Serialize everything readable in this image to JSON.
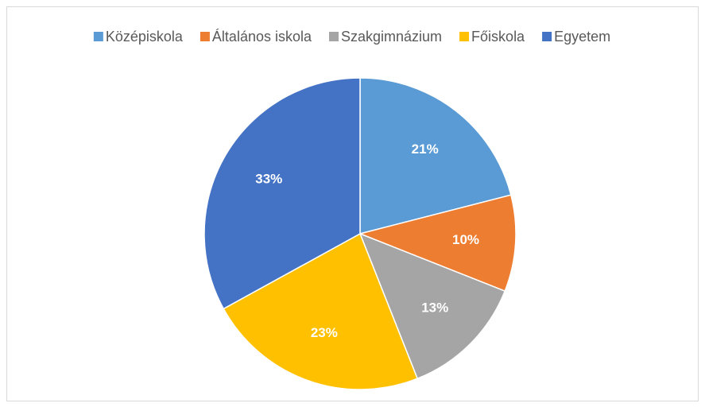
{
  "chart_data": {
    "type": "pie",
    "categories": [
      "Középiskola",
      "Általános iskola",
      "Szakgimnázium",
      "Főiskola",
      "Egyetem"
    ],
    "values": [
      21,
      10,
      13,
      23,
      33
    ],
    "value_labels": [
      "21%",
      "10%",
      "13%",
      "23%",
      "33%"
    ],
    "colors": [
      "#5b9bd5",
      "#ed7d31",
      "#a5a5a5",
      "#ffc000",
      "#4472c4"
    ],
    "legend": "top"
  }
}
